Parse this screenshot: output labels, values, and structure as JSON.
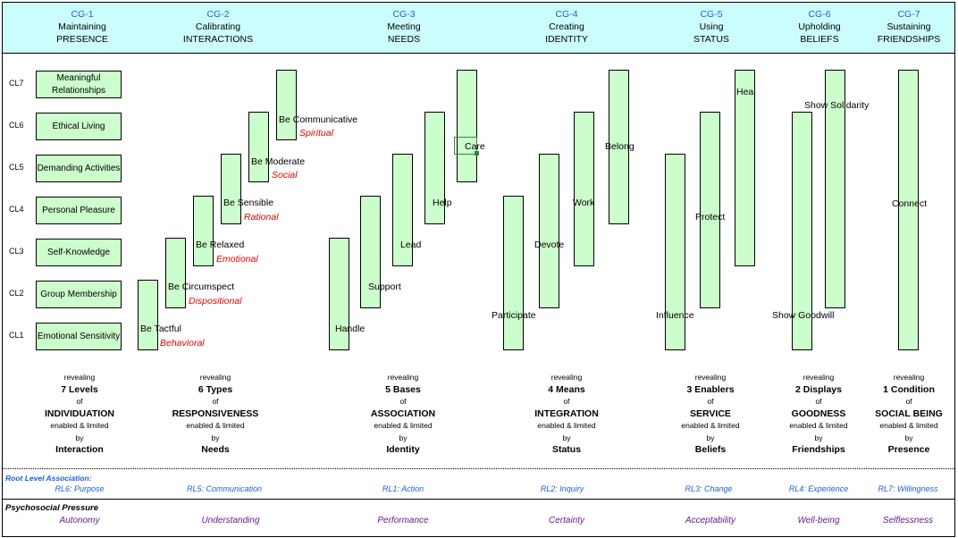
{
  "header": {
    "groups": [
      {
        "id": "CG-1",
        "title": "Maintaining",
        "subtitle": "PRESENCE"
      },
      {
        "id": "CG-2",
        "title": "Calibrating",
        "subtitle": "INTERACTIONS"
      },
      {
        "id": "CG-3",
        "title": "Meeting",
        "subtitle": "NEEDS"
      },
      {
        "id": "CG-4",
        "title": "Creating",
        "subtitle": "IDENTITY"
      },
      {
        "id": "CG-5",
        "title": "Using",
        "subtitle": "STATUS"
      },
      {
        "id": "CG-6",
        "title": "Upholding",
        "subtitle": "BELIEFS"
      },
      {
        "id": "CG-7",
        "title": "Sustaining",
        "subtitle": "FRIENDSHIPS"
      }
    ]
  },
  "levels": [
    {
      "code": "CL7",
      "label": "Meaningful Relationships"
    },
    {
      "code": "CL6",
      "label": "Ethical Living"
    },
    {
      "code": "CL5",
      "label": "Demanding Activities"
    },
    {
      "code": "CL4",
      "label": "Personal Pleasure"
    },
    {
      "code": "CL3",
      "label": "Self-Knowledge"
    },
    {
      "code": "CL2",
      "label": "Group Membership"
    },
    {
      "code": "CL1",
      "label": "Emotional Sensitivity"
    }
  ],
  "cg2_items": [
    {
      "label": "Be Tactful",
      "type": "Behavioral"
    },
    {
      "label": "Be Circumspect",
      "type": "Dispositional"
    },
    {
      "label": "Be Relaxed",
      "type": "Emotional"
    },
    {
      "label": "Be Sensible",
      "type": "Rational"
    },
    {
      "label": "Be Moderate",
      "type": "Social"
    },
    {
      "label": "Be Communicative",
      "type": "Spiritual"
    }
  ],
  "cg3_items": [
    "Handle",
    "Support",
    "Lead",
    "Help",
    "Care"
  ],
  "cg4_items": [
    "Participate",
    "Devote",
    "Work",
    "Belong"
  ],
  "cg5_items": [
    "Influence",
    "Protect",
    "Heal"
  ],
  "cg6_items": [
    "Show Goodwill",
    "Show Solidarity"
  ],
  "cg7_items": [
    "Connect"
  ],
  "revealing": [
    {
      "r": "revealing",
      "count": "7 Levels",
      "of": "of",
      "what": "INDIVIDUATION",
      "el": "enabled & limited",
      "by": "by",
      "driver": "Interaction"
    },
    {
      "r": "revealing",
      "count": "6 Types",
      "of": "of",
      "what": "RESPONSIVENESS",
      "el": "enabled & limited",
      "by": "by",
      "driver": "Needs"
    },
    {
      "r": "revealing",
      "count": "5 Bases",
      "of": "of",
      "what": "ASSOCIATION",
      "el": "enabled & limited",
      "by": "by",
      "driver": "Identity"
    },
    {
      "r": "revealing",
      "count": "4 Means",
      "of": "of",
      "what": "INTEGRATION",
      "el": "enabled & limited",
      "by": "by",
      "driver": "Status"
    },
    {
      "r": "revealing",
      "count": "3 Enablers",
      "of": "of",
      "what": "SERVICE",
      "el": "enabled & limited",
      "by": "by",
      "driver": "Beliefs"
    },
    {
      "r": "revealing",
      "count": "2 Displays",
      "of": "of",
      "what": "GOODNESS",
      "el": "enabled & limited",
      "by": "by",
      "driver": "Friendships"
    },
    {
      "r": "revealing",
      "count": "1 Condition",
      "of": "of",
      "what": "SOCIAL BEING",
      "el": "enabled & limited",
      "by": "by",
      "driver": "Presence"
    }
  ],
  "root_level": {
    "title": "Root Level Association:",
    "items": [
      "RL6: Purpose",
      "RL5: Communication",
      "RL1: Action",
      "RL2: Inquiry",
      "RL3: Change",
      "RL4: Experience",
      "RL7: Willingness"
    ]
  },
  "pressure": {
    "title": "Psychosocial Pressure",
    "items": [
      "Autonomy",
      "Understanding",
      "Performance",
      "Certainty",
      "Acceptability",
      "Well-being",
      "Selflessness"
    ]
  },
  "colors": {
    "header_bg": "#ccfdfd",
    "box_fill": "#ccfdcc",
    "type_red": "#e00000",
    "id_blue": "#1f5fd4",
    "pressure_purple": "#6a1b8a"
  }
}
